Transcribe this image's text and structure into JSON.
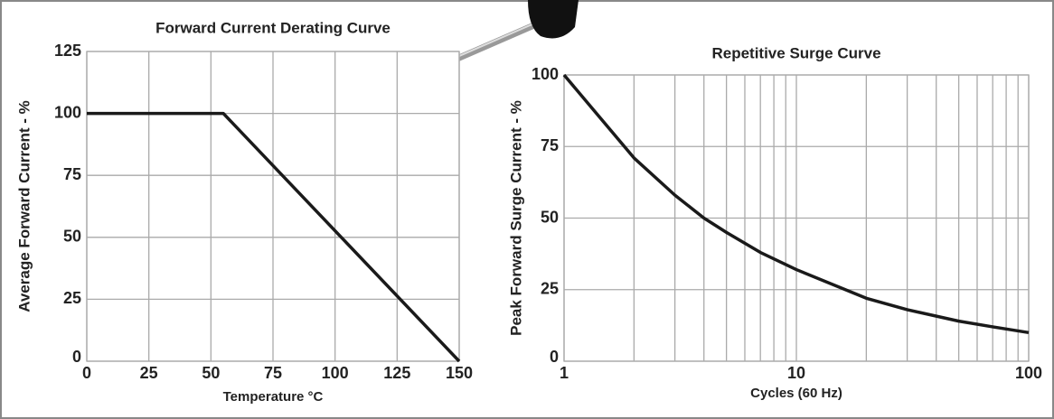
{
  "chart_data": [
    {
      "type": "line",
      "title": "Forward Current Derating Curve",
      "x_label": "Temperature °C",
      "y_label": "Average Forward Current - %",
      "x": [
        0,
        55,
        150
      ],
      "values": [
        100,
        100,
        0
      ],
      "color": "#1a1a1a",
      "xlim": [
        0,
        150
      ],
      "xticks": [
        0,
        25,
        50,
        75,
        100,
        125,
        150
      ],
      "ylim": [
        0,
        125
      ],
      "yticks": [
        0,
        25,
        50,
        75,
        100,
        125
      ],
      "grid": true,
      "xlog": false
    },
    {
      "type": "line",
      "title": "Repetitive Surge Curve",
      "x_label": "Cycles (60 Hz)",
      "y_label": "Peak Forward Surge Current - %",
      "x": [
        1,
        2,
        3,
        4,
        5,
        7,
        10,
        20,
        30,
        50,
        70,
        100
      ],
      "values": [
        100,
        71,
        58,
        50,
        45,
        38,
        32,
        22,
        18,
        14,
        12,
        10
      ],
      "color": "#1a1a1a",
      "xlim": [
        1,
        100
      ],
      "xticks": [
        1,
        10,
        100
      ],
      "xminorticks": [
        2,
        3,
        4,
        5,
        6,
        7,
        8,
        9,
        20,
        30,
        40,
        50,
        60,
        70,
        80,
        90
      ],
      "ylim": [
        0,
        100
      ],
      "yticks": [
        0,
        25,
        50,
        75,
        100
      ],
      "grid": true,
      "xlog": true
    }
  ]
}
